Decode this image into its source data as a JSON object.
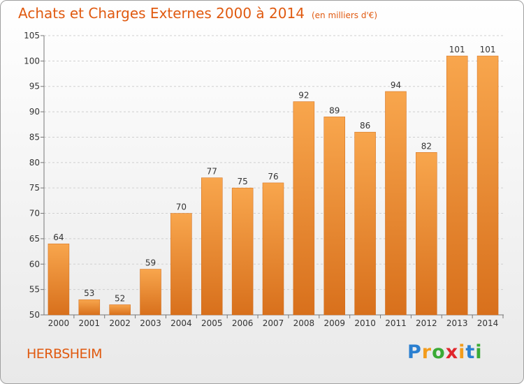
{
  "title": "Achats et Charges Externes 2000 à 2014",
  "unit_note": "(en milliers d'€)",
  "location": "HERBSHEIM",
  "brand": {
    "letters": [
      "P",
      "r",
      "o",
      "x",
      "i",
      "t",
      "i"
    ],
    "colors": [
      "#2a7fd0",
      "#f39c1c",
      "#3aaa35",
      "#e0262c",
      "#f39c1c",
      "#2a7fd0",
      "#3aaa35"
    ]
  },
  "colors": {
    "bar_top": "#f8a64d",
    "bar_bottom": "#d8701c",
    "text": "#e05a10",
    "label": "#333333"
  },
  "chart_data": {
    "type": "bar",
    "categories": [
      "2000",
      "2001",
      "2002",
      "2003",
      "2004",
      "2005",
      "2006",
      "2007",
      "2008",
      "2009",
      "2010",
      "2011",
      "2012",
      "2013",
      "2014"
    ],
    "values": [
      64,
      53,
      52,
      59,
      70,
      77,
      75,
      76,
      92,
      89,
      86,
      94,
      82,
      101,
      101
    ],
    "yticks": [
      "50",
      "55",
      "60",
      "65",
      "70",
      "75",
      "80",
      "85",
      "90",
      "95",
      "100",
      "105"
    ],
    "ylim": [
      50,
      105
    ],
    "grid": true,
    "data_labels": true
  }
}
